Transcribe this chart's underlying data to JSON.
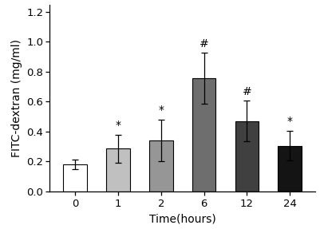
{
  "categories": [
    "0",
    "1",
    "2",
    "6",
    "12",
    "24"
  ],
  "values": [
    0.18,
    0.285,
    0.34,
    0.755,
    0.47,
    0.305
  ],
  "errors": [
    0.03,
    0.095,
    0.14,
    0.17,
    0.135,
    0.1
  ],
  "bar_colors": [
    "#ffffff",
    "#c0c0c0",
    "#969696",
    "#6e6e6e",
    "#404040",
    "#141414"
  ],
  "bar_edgecolor": "#000000",
  "annotations": [
    "",
    "*",
    "*",
    "#",
    "#",
    "*"
  ],
  "xlabel": "Time(hours)",
  "ylabel": "FITC-dextran (mg/ml)",
  "ylim": [
    0,
    1.25
  ],
  "yticks": [
    0.0,
    0.2,
    0.4,
    0.6,
    0.8,
    1.0,
    1.2
  ],
  "annotation_fontsize": 10,
  "axis_fontsize": 10,
  "tick_fontsize": 9.5
}
